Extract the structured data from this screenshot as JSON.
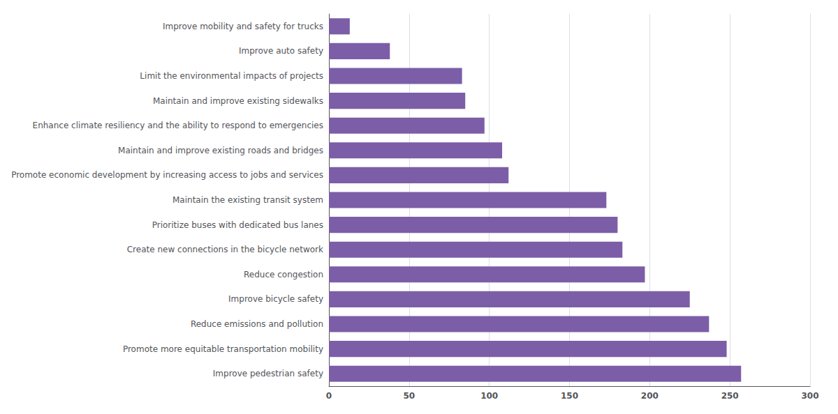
{
  "chart_data": {
    "type": "bar",
    "orientation": "horizontal",
    "categories": [
      "Improve pedestrian safety",
      "Promote more equitable transportation mobility",
      "Reduce emissions and pollution",
      "Improve bicycle safety",
      "Reduce congestion",
      "Create new connections in the bicycle network",
      "Prioritize buses with dedicated bus lanes",
      "Maintain the existing transit system",
      "Promote economic development by increasing access to jobs and services",
      "Maintain and improve existing roads and bridges",
      "Enhance climate resiliency and the ability to respond to emergencies",
      "Maintain and improve existing sidewalks",
      "Limit the environmental impacts of projects",
      "Improve auto safety",
      "Improve mobility and safety for trucks"
    ],
    "values": [
      257,
      248,
      237,
      225,
      197,
      183,
      180,
      173,
      112,
      108,
      97,
      85,
      83,
      38,
      13
    ],
    "color": "#7B5EA7",
    "xlim": [
      0,
      300
    ],
    "xticks": [
      0,
      50,
      100,
      150,
      200,
      250,
      300
    ],
    "grid": true
  }
}
